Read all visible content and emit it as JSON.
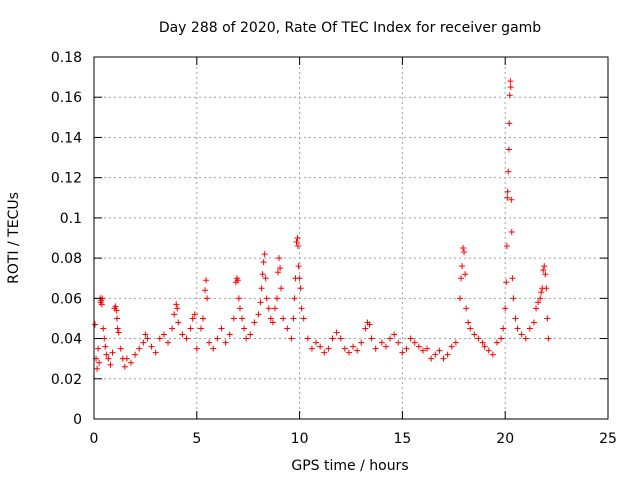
{
  "chart_data": {
    "type": "scatter",
    "title": "Day 288 of 2020, Rate Of TEC Index for receiver gamb",
    "xlabel": "GPS time / hours",
    "ylabel": "ROTI / TECUs",
    "xlim": [
      0,
      25
    ],
    "ylim": [
      0,
      0.18
    ],
    "xticks": [
      0,
      5,
      10,
      15,
      20,
      25
    ],
    "xtick_labels": [
      "0",
      "5",
      "10",
      "15",
      "20",
      "25"
    ],
    "yticks": [
      0,
      0.02,
      0.04,
      0.06,
      0.08,
      0.1,
      0.12,
      0.14,
      0.16,
      0.18
    ],
    "ytick_labels": [
      "0",
      "0.02",
      "0.04",
      "0.06",
      "0.08",
      "0.1",
      "0.12",
      "0.14",
      "0.16",
      "0.18"
    ],
    "grid": true,
    "marker": "+",
    "color": "#ff0000",
    "series": [
      {
        "name": "ROTI",
        "points": [
          [
            0.05,
            0.047
          ],
          [
            0.1,
            0.03
          ],
          [
            0.15,
            0.025
          ],
          [
            0.2,
            0.035
          ],
          [
            0.25,
            0.028
          ],
          [
            0.3,
            0.06
          ],
          [
            0.32,
            0.058
          ],
          [
            0.35,
            0.059
          ],
          [
            0.38,
            0.057
          ],
          [
            0.4,
            0.06
          ],
          [
            0.45,
            0.045
          ],
          [
            0.5,
            0.04
          ],
          [
            0.55,
            0.036
          ],
          [
            0.6,
            0.032
          ],
          [
            0.7,
            0.03
          ],
          [
            0.8,
            0.027
          ],
          [
            0.9,
            0.033
          ],
          [
            1.0,
            0.055
          ],
          [
            1.05,
            0.056
          ],
          [
            1.1,
            0.054
          ],
          [
            1.12,
            0.05
          ],
          [
            1.15,
            0.045
          ],
          [
            1.2,
            0.043
          ],
          [
            1.3,
            0.035
          ],
          [
            1.4,
            0.03
          ],
          [
            1.5,
            0.026
          ],
          [
            1.6,
            0.03
          ],
          [
            1.8,
            0.028
          ],
          [
            2.0,
            0.032
          ],
          [
            2.2,
            0.035
          ],
          [
            2.4,
            0.038
          ],
          [
            2.5,
            0.042
          ],
          [
            2.6,
            0.04
          ],
          [
            2.8,
            0.036
          ],
          [
            3.0,
            0.033
          ],
          [
            3.2,
            0.04
          ],
          [
            3.4,
            0.042
          ],
          [
            3.6,
            0.038
          ],
          [
            3.8,
            0.045
          ],
          [
            3.9,
            0.052
          ],
          [
            4.0,
            0.057
          ],
          [
            4.05,
            0.055
          ],
          [
            4.1,
            0.048
          ],
          [
            4.3,
            0.042
          ],
          [
            4.5,
            0.04
          ],
          [
            4.7,
            0.045
          ],
          [
            4.8,
            0.05
          ],
          [
            4.9,
            0.052
          ],
          [
            5.0,
            0.035
          ],
          [
            5.2,
            0.045
          ],
          [
            5.3,
            0.05
          ],
          [
            5.4,
            0.064
          ],
          [
            5.45,
            0.069
          ],
          [
            5.5,
            0.06
          ],
          [
            5.6,
            0.038
          ],
          [
            5.8,
            0.035
          ],
          [
            6.0,
            0.04
          ],
          [
            6.2,
            0.045
          ],
          [
            6.4,
            0.038
          ],
          [
            6.6,
            0.042
          ],
          [
            6.8,
            0.05
          ],
          [
            6.9,
            0.068
          ],
          [
            6.95,
            0.07
          ],
          [
            7.0,
            0.069
          ],
          [
            7.05,
            0.06
          ],
          [
            7.1,
            0.055
          ],
          [
            7.2,
            0.05
          ],
          [
            7.3,
            0.045
          ],
          [
            7.4,
            0.04
          ],
          [
            7.6,
            0.042
          ],
          [
            7.8,
            0.048
          ],
          [
            8.0,
            0.052
          ],
          [
            8.1,
            0.058
          ],
          [
            8.15,
            0.065
          ],
          [
            8.2,
            0.072
          ],
          [
            8.25,
            0.078
          ],
          [
            8.3,
            0.082
          ],
          [
            8.35,
            0.07
          ],
          [
            8.4,
            0.06
          ],
          [
            8.5,
            0.055
          ],
          [
            8.6,
            0.05
          ],
          [
            8.7,
            0.048
          ],
          [
            8.8,
            0.055
          ],
          [
            8.9,
            0.06
          ],
          [
            8.95,
            0.073
          ],
          [
            9.0,
            0.08
          ],
          [
            9.05,
            0.075
          ],
          [
            9.1,
            0.065
          ],
          [
            9.2,
            0.05
          ],
          [
            9.4,
            0.045
          ],
          [
            9.6,
            0.04
          ],
          [
            9.7,
            0.05
          ],
          [
            9.75,
            0.06
          ],
          [
            9.8,
            0.07
          ],
          [
            9.85,
            0.088
          ],
          [
            9.9,
            0.09
          ],
          [
            9.92,
            0.086
          ],
          [
            9.95,
            0.076
          ],
          [
            10.0,
            0.07
          ],
          [
            10.05,
            0.065
          ],
          [
            10.1,
            0.055
          ],
          [
            10.2,
            0.05
          ],
          [
            10.4,
            0.04
          ],
          [
            10.6,
            0.035
          ],
          [
            10.8,
            0.038
          ],
          [
            11.0,
            0.036
          ],
          [
            11.2,
            0.033
          ],
          [
            11.4,
            0.035
          ],
          [
            11.6,
            0.04
          ],
          [
            11.8,
            0.043
          ],
          [
            12.0,
            0.04
          ],
          [
            12.2,
            0.035
          ],
          [
            12.4,
            0.033
          ],
          [
            12.6,
            0.036
          ],
          [
            12.8,
            0.034
          ],
          [
            13.0,
            0.038
          ],
          [
            13.2,
            0.045
          ],
          [
            13.3,
            0.048
          ],
          [
            13.4,
            0.047
          ],
          [
            13.5,
            0.04
          ],
          [
            13.7,
            0.035
          ],
          [
            14.0,
            0.038
          ],
          [
            14.2,
            0.036
          ],
          [
            14.4,
            0.04
          ],
          [
            14.6,
            0.042
          ],
          [
            14.8,
            0.038
          ],
          [
            15.0,
            0.033
          ],
          [
            15.2,
            0.035
          ],
          [
            15.4,
            0.04
          ],
          [
            15.6,
            0.038
          ],
          [
            15.8,
            0.036
          ],
          [
            16.0,
            0.034
          ],
          [
            16.2,
            0.035
          ],
          [
            16.4,
            0.03
          ],
          [
            16.6,
            0.032
          ],
          [
            16.8,
            0.034
          ],
          [
            17.0,
            0.03
          ],
          [
            17.2,
            0.032
          ],
          [
            17.4,
            0.036
          ],
          [
            17.6,
            0.038
          ],
          [
            17.8,
            0.06
          ],
          [
            17.85,
            0.07
          ],
          [
            17.9,
            0.076
          ],
          [
            17.95,
            0.085
          ],
          [
            18.0,
            0.083
          ],
          [
            18.05,
            0.072
          ],
          [
            18.1,
            0.055
          ],
          [
            18.2,
            0.048
          ],
          [
            18.3,
            0.045
          ],
          [
            18.5,
            0.042
          ],
          [
            18.7,
            0.04
          ],
          [
            18.9,
            0.038
          ],
          [
            19.0,
            0.036
          ],
          [
            19.2,
            0.034
          ],
          [
            19.4,
            0.032
          ],
          [
            19.6,
            0.038
          ],
          [
            19.8,
            0.04
          ],
          [
            19.9,
            0.045
          ],
          [
            20.0,
            0.055
          ],
          [
            20.05,
            0.068
          ],
          [
            20.08,
            0.086
          ],
          [
            20.1,
            0.11
          ],
          [
            20.12,
            0.113
          ],
          [
            20.15,
            0.123
          ],
          [
            20.18,
            0.134
          ],
          [
            20.2,
            0.147
          ],
          [
            20.22,
            0.161
          ],
          [
            20.25,
            0.168
          ],
          [
            20.27,
            0.165
          ],
          [
            20.3,
            0.109
          ],
          [
            20.32,
            0.093
          ],
          [
            20.35,
            0.07
          ],
          [
            20.4,
            0.06
          ],
          [
            20.5,
            0.05
          ],
          [
            20.6,
            0.045
          ],
          [
            20.8,
            0.042
          ],
          [
            21.0,
            0.04
          ],
          [
            21.2,
            0.045
          ],
          [
            21.4,
            0.048
          ],
          [
            21.5,
            0.055
          ],
          [
            21.6,
            0.058
          ],
          [
            21.7,
            0.06
          ],
          [
            21.75,
            0.063
          ],
          [
            21.8,
            0.065
          ],
          [
            21.85,
            0.074
          ],
          [
            21.9,
            0.076
          ],
          [
            21.95,
            0.072
          ],
          [
            22.0,
            0.065
          ],
          [
            22.05,
            0.05
          ],
          [
            22.1,
            0.04
          ]
        ]
      }
    ]
  }
}
